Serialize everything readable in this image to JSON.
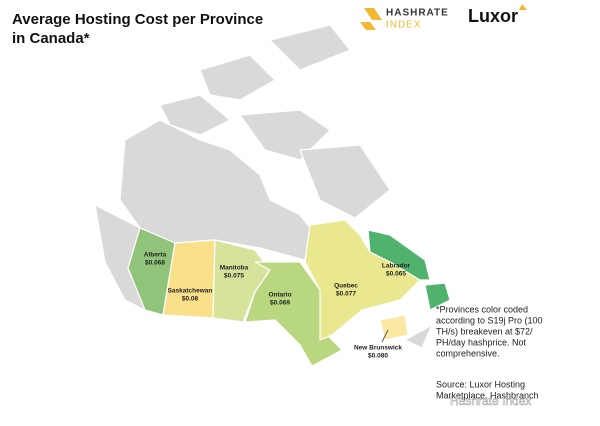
{
  "header": {
    "title_lines": [
      "Average Hosting Cost per Province",
      "in Canada*"
    ],
    "logo_1": "HASHRATE",
    "logo_1_sub": "INDEX",
    "logo_2": "Luxor"
  },
  "provinces": [
    {
      "name": "Alberta",
      "cost": "$0.068",
      "color": "#8fc47a"
    },
    {
      "name": "Saskatchewan",
      "cost": "$0.08",
      "color": "#fbe08a"
    },
    {
      "name": "Manitoba",
      "cost": "$0.075",
      "color": "#d6e39a"
    },
    {
      "name": "Ontario",
      "cost": "$0.069",
      "color": "#b9d77e"
    },
    {
      "name": "Quebec",
      "cost": "$0.077",
      "color": "#e9e88f"
    },
    {
      "name": "Labrador",
      "cost": "$0.065",
      "color": "#4fb36e"
    },
    {
      "name": "New Brunswick",
      "cost": "$0.080",
      "color": "#fbe7a0"
    }
  ],
  "note_lines": [
    "*Provinces color coded",
    "according to S19j Pro (100",
    "TH/s) breakeven at $72/",
    "PH/day hashprice. Not",
    "comprehensive."
  ],
  "source_lines": [
    "Source: Luxor Hosting",
    "Marketplace, Hashbranch"
  ],
  "watermark": "Hashrate Index"
}
